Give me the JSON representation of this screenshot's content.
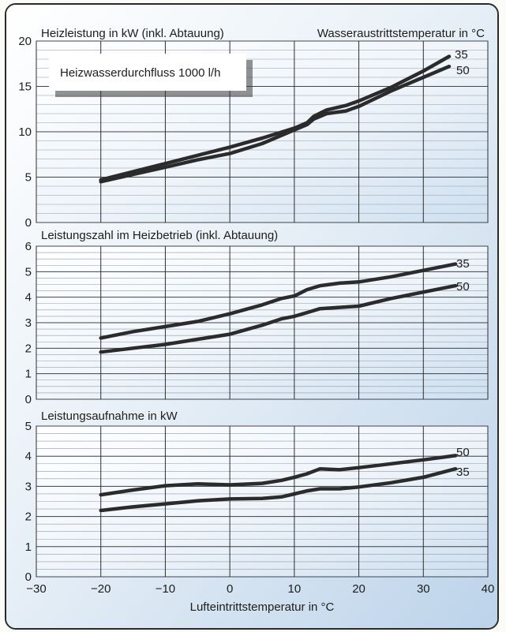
{
  "chart_data": [
    {
      "type": "line",
      "title": "Heizleistung in kW (inkl. Abtauung)",
      "legend_title": "Wasseraustrittstemperatur in °C",
      "annotation": "Heizwasserdurchfluss 1000 l/h",
      "xlim": [
        -30,
        40
      ],
      "ylim": [
        0,
        20
      ],
      "y_ticks": [
        "0",
        "5",
        "10",
        "15",
        "20"
      ],
      "grid": true,
      "series": [
        {
          "name": "35",
          "x": [
            -20,
            -15,
            -10,
            -5,
            0,
            5,
            10,
            12,
            13,
            15,
            18,
            20,
            25,
            30,
            34
          ],
          "y": [
            4.7,
            5.6,
            6.5,
            7.4,
            8.3,
            9.3,
            10.4,
            11.0,
            11.7,
            12.4,
            12.9,
            13.4,
            14.9,
            16.7,
            18.3
          ]
        },
        {
          "name": "50",
          "x": [
            -20,
            -15,
            -10,
            -5,
            0,
            5,
            10,
            12,
            13,
            15,
            18,
            20,
            25,
            30,
            34
          ],
          "y": [
            4.5,
            5.3,
            6.1,
            6.9,
            7.6,
            8.7,
            10.2,
            10.8,
            11.4,
            12.0,
            12.3,
            12.8,
            14.5,
            16.0,
            17.2
          ]
        }
      ]
    },
    {
      "type": "line",
      "title": "Leistungszahl im Heizbetrieb (inkl. Abtauung)",
      "xlim": [
        -30,
        40
      ],
      "ylim": [
        0,
        6
      ],
      "y_ticks": [
        "0",
        "1",
        "2",
        "3",
        "4",
        "5",
        "6"
      ],
      "grid": true,
      "series": [
        {
          "name": "35",
          "x": [
            -20,
            -15,
            -10,
            -5,
            0,
            5,
            8,
            10,
            12,
            14,
            17,
            20,
            25,
            30,
            35
          ],
          "y": [
            2.4,
            2.65,
            2.85,
            3.05,
            3.35,
            3.7,
            3.95,
            4.05,
            4.3,
            4.45,
            4.55,
            4.6,
            4.8,
            5.05,
            5.3
          ]
        },
        {
          "name": "50",
          "x": [
            -20,
            -15,
            -10,
            -5,
            0,
            5,
            8,
            10,
            12,
            14,
            17,
            20,
            25,
            30,
            35
          ],
          "y": [
            1.85,
            2.0,
            2.15,
            2.35,
            2.55,
            2.9,
            3.15,
            3.25,
            3.4,
            3.55,
            3.6,
            3.65,
            3.95,
            4.2,
            4.45
          ]
        }
      ]
    },
    {
      "type": "line",
      "title": "Leistungsaufnahme in kW",
      "xlabel": "Lufteintrittstemperatur in °C",
      "xlim": [
        -30,
        40
      ],
      "x_ticks": [
        "−30",
        "−20",
        "−10",
        "0",
        "10",
        "20",
        "30",
        "40"
      ],
      "ylim": [
        0,
        5
      ],
      "y_ticks": [
        "0",
        "1",
        "2",
        "3",
        "4",
        "5"
      ],
      "grid": true,
      "series": [
        {
          "name": "50",
          "x": [
            -20,
            -15,
            -10,
            -5,
            0,
            5,
            8,
            10,
            12,
            14,
            17,
            20,
            25,
            30,
            35
          ],
          "y": [
            2.72,
            2.88,
            3.02,
            3.08,
            3.05,
            3.1,
            3.2,
            3.3,
            3.42,
            3.58,
            3.55,
            3.62,
            3.75,
            3.88,
            4.02
          ]
        },
        {
          "name": "35",
          "x": [
            -20,
            -15,
            -10,
            -5,
            0,
            5,
            8,
            10,
            12,
            14,
            17,
            20,
            25,
            30,
            35
          ],
          "y": [
            2.2,
            2.32,
            2.42,
            2.52,
            2.58,
            2.6,
            2.65,
            2.75,
            2.85,
            2.92,
            2.92,
            2.98,
            3.12,
            3.3,
            3.58
          ]
        }
      ]
    }
  ]
}
